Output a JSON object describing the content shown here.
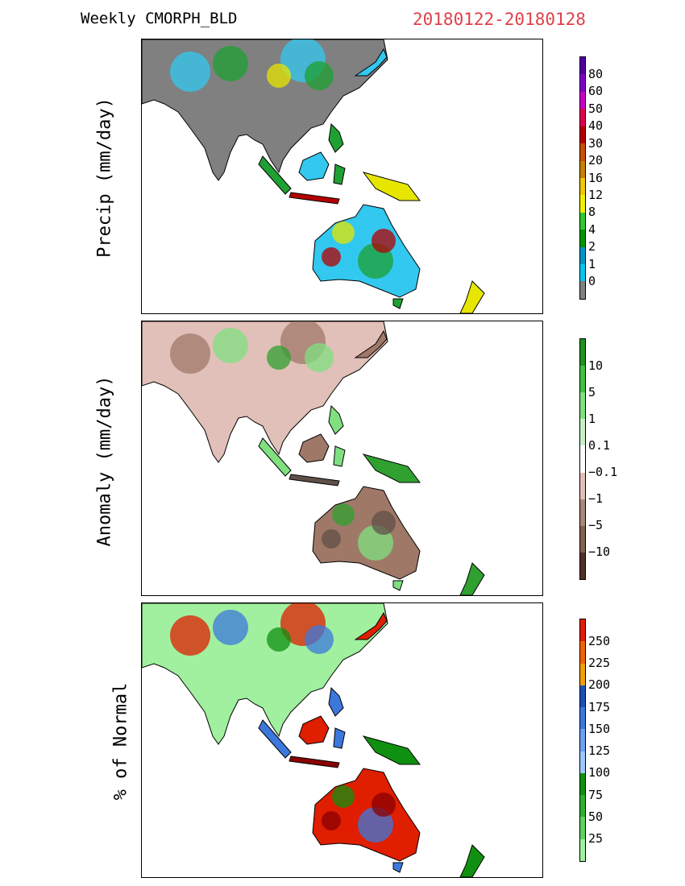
{
  "title": {
    "left": "Weekly CMORPH_BLD",
    "right": "20180122-20180128"
  },
  "panels": [
    {
      "ylabel": "Precip (mm/day)",
      "colorbar": {
        "colors": [
          "#808080",
          "#00c8f0",
          "#0096c8",
          "#009600",
          "#32c832",
          "#f0f000",
          "#f0c800",
          "#c88200",
          "#c85000",
          "#b40000",
          "#e00050",
          "#c800c8",
          "#8000c8",
          "#5000a0"
        ],
        "ticks": [
          "80",
          "60",
          "50",
          "40",
          "30",
          "20",
          "16",
          "12",
          "8",
          "4",
          "2",
          "1",
          "0"
        ]
      },
      "land_colors": {
        "background": "#808080",
        "primary": "#32c8f0",
        "secondary": "#1ea032",
        "accent": "#e6e600",
        "hot": "#b40000"
      }
    },
    {
      "ylabel": "Anomaly (mm/day)",
      "colorbar": {
        "colors": [
          "#503028",
          "#806050",
          "#a88878",
          "#e0c0b8",
          "#ffffff",
          "#c8f0c8",
          "#80e080",
          "#40c040",
          "#209020"
        ],
        "ticks": [
          "10",
          "5",
          "1",
          "0.1",
          "−0.1",
          "−1",
          "−5",
          "−10"
        ]
      },
      "land_colors": {
        "background": "#e0c0b8",
        "primary": "#a07868",
        "secondary": "#80e080",
        "accent": "#30a030",
        "hot": "#605048"
      }
    },
    {
      "ylabel": "% of Normal",
      "colorbar": {
        "colors": [
          "#a0f0a0",
          "#60d060",
          "#30b030",
          "#109010",
          "#a0c8ff",
          "#6ea0f0",
          "#3c78dc",
          "#1e50b4",
          "#f0a000",
          "#f06400",
          "#e01e00"
        ],
        "ticks": [
          "250",
          "225",
          "200",
          "175",
          "150",
          "125",
          "100",
          "75",
          "50",
          "25"
        ]
      },
      "land_colors": {
        "background": "#a0f0a0",
        "primary": "#e01e00",
        "secondary": "#3c78dc",
        "accent": "#109010",
        "hot": "#8b0000"
      }
    }
  ]
}
